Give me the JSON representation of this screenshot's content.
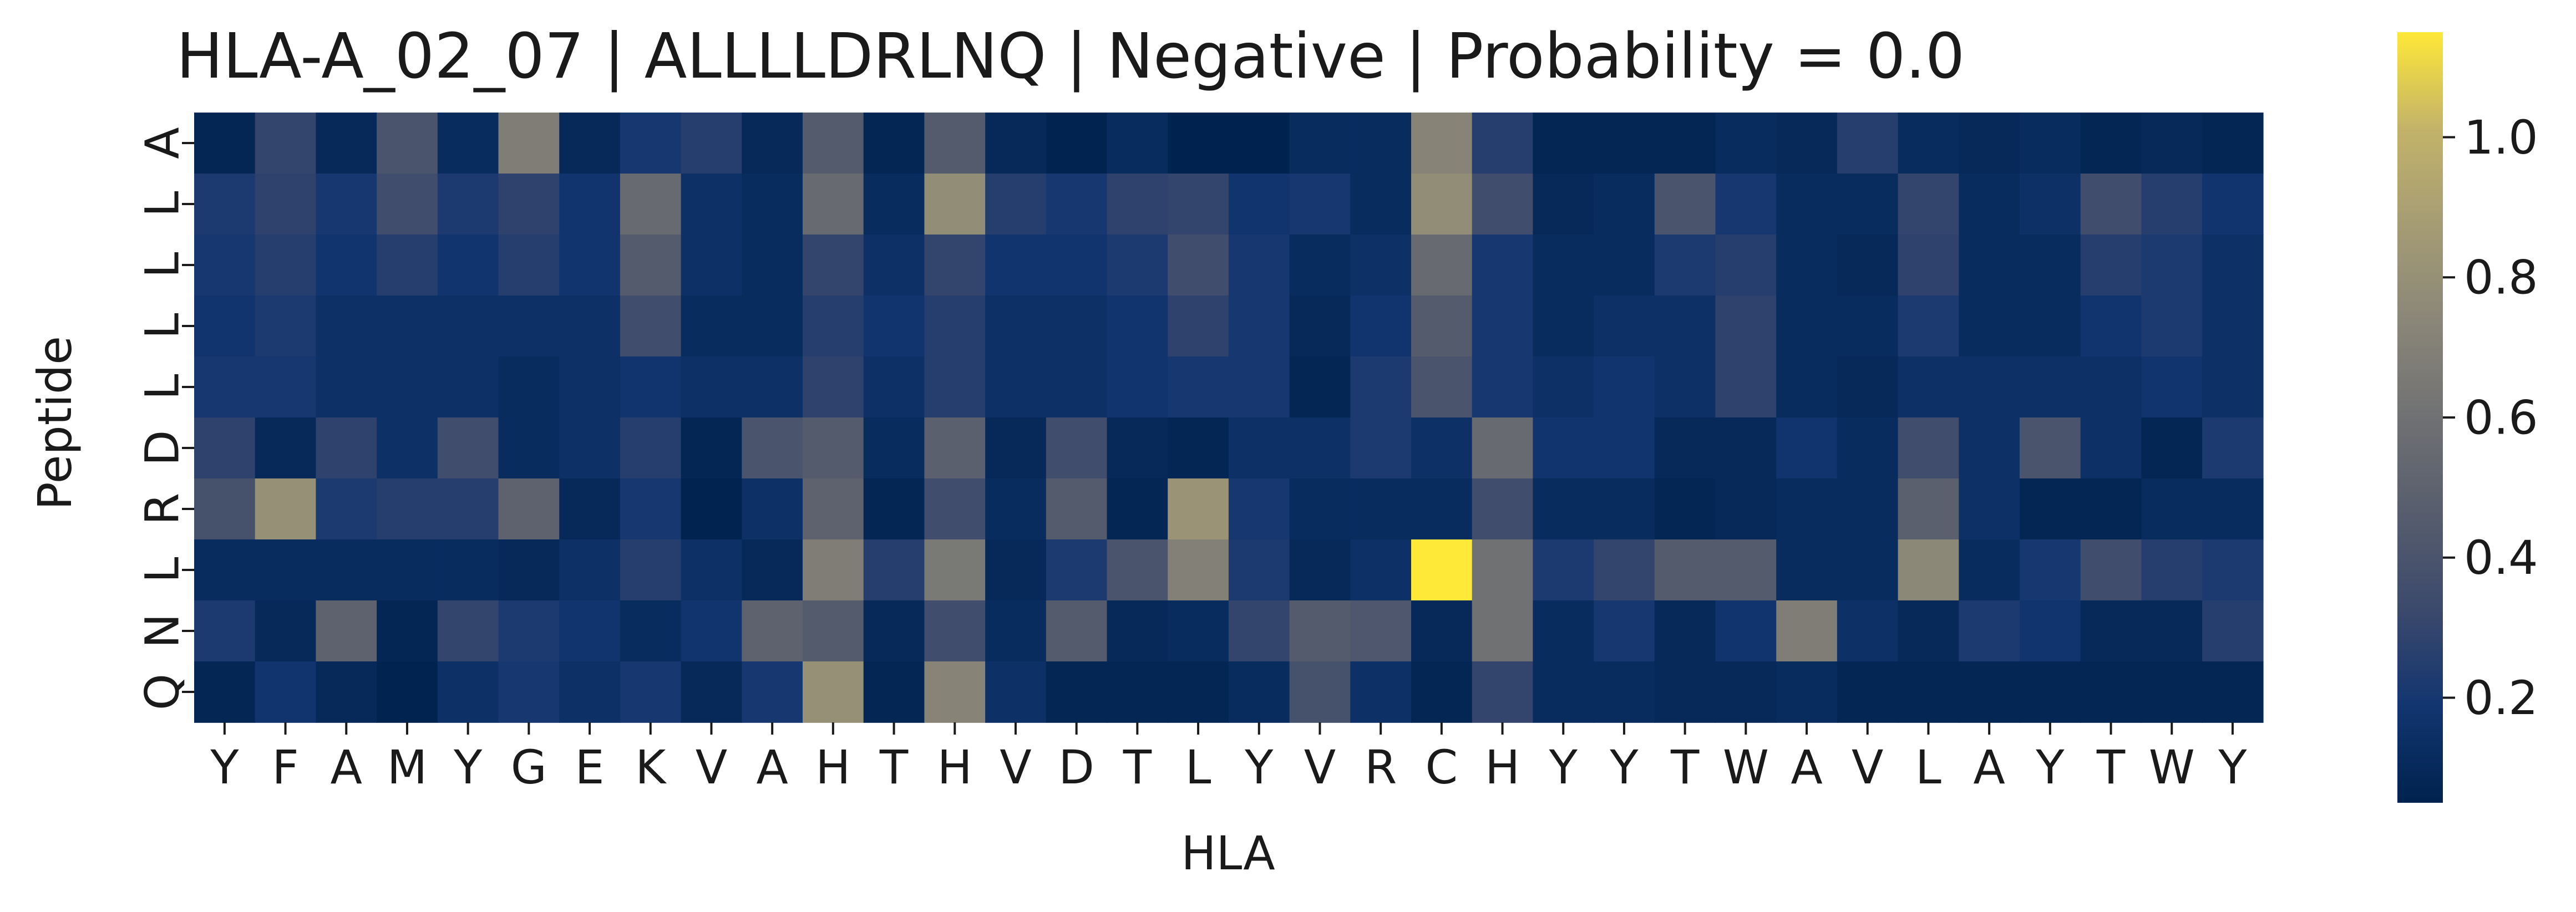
{
  "chart_data": {
    "type": "heatmap",
    "title": "HLA-A_02_07 | ALLLLDRLNQ | Negative | Probability = 0.0",
    "xlabel": "HLA",
    "ylabel": "Peptide",
    "colormap": "cividis",
    "colorbar": {
      "min": 0.05,
      "max": 1.15,
      "ticks": [
        0.2,
        0.4,
        0.6,
        0.8,
        1.0
      ],
      "tick_labels": [
        "0.2",
        "0.4",
        "0.6",
        "0.8",
        "1.0"
      ]
    },
    "x_categories": [
      "Y",
      "F",
      "A",
      "M",
      "Y",
      "G",
      "E",
      "K",
      "V",
      "A",
      "H",
      "T",
      "H",
      "V",
      "D",
      "T",
      "L",
      "Y",
      "V",
      "R",
      "C",
      "H",
      "Y",
      "Y",
      "T",
      "W",
      "A",
      "V",
      "L",
      "A",
      "Y",
      "T",
      "W",
      "Y"
    ],
    "y_categories": [
      "A",
      "L",
      "L",
      "L",
      "L",
      "D",
      "R",
      "L",
      "N",
      "Q"
    ],
    "values": [
      [
        0.08,
        0.3,
        0.1,
        0.4,
        0.12,
        0.68,
        0.1,
        0.2,
        0.25,
        0.1,
        0.45,
        0.08,
        0.45,
        0.1,
        0.06,
        0.12,
        0.05,
        0.05,
        0.12,
        0.12,
        0.72,
        0.25,
        0.08,
        0.08,
        0.08,
        0.12,
        0.1,
        0.25,
        0.12,
        0.1,
        0.12,
        0.08,
        0.1,
        0.08
      ],
      [
        0.22,
        0.28,
        0.2,
        0.35,
        0.22,
        0.28,
        0.18,
        0.55,
        0.15,
        0.12,
        0.55,
        0.12,
        0.78,
        0.25,
        0.2,
        0.28,
        0.3,
        0.18,
        0.2,
        0.12,
        0.78,
        0.35,
        0.1,
        0.12,
        0.4,
        0.2,
        0.12,
        0.12,
        0.3,
        0.12,
        0.15,
        0.35,
        0.25,
        0.18
      ],
      [
        0.2,
        0.25,
        0.18,
        0.25,
        0.18,
        0.25,
        0.18,
        0.45,
        0.15,
        0.12,
        0.3,
        0.15,
        0.3,
        0.18,
        0.18,
        0.22,
        0.35,
        0.2,
        0.12,
        0.15,
        0.55,
        0.2,
        0.12,
        0.12,
        0.22,
        0.25,
        0.12,
        0.1,
        0.28,
        0.12,
        0.12,
        0.25,
        0.22,
        0.15
      ],
      [
        0.18,
        0.22,
        0.15,
        0.15,
        0.15,
        0.15,
        0.15,
        0.35,
        0.12,
        0.12,
        0.25,
        0.18,
        0.25,
        0.15,
        0.15,
        0.18,
        0.28,
        0.2,
        0.1,
        0.18,
        0.45,
        0.2,
        0.12,
        0.15,
        0.15,
        0.28,
        0.12,
        0.12,
        0.22,
        0.12,
        0.12,
        0.18,
        0.22,
        0.15
      ],
      [
        0.2,
        0.2,
        0.15,
        0.15,
        0.15,
        0.12,
        0.15,
        0.18,
        0.15,
        0.15,
        0.28,
        0.15,
        0.25,
        0.15,
        0.15,
        0.18,
        0.2,
        0.2,
        0.08,
        0.22,
        0.4,
        0.2,
        0.15,
        0.18,
        0.15,
        0.28,
        0.12,
        0.1,
        0.15,
        0.15,
        0.15,
        0.15,
        0.18,
        0.15
      ],
      [
        0.28,
        0.1,
        0.28,
        0.15,
        0.35,
        0.12,
        0.15,
        0.25,
        0.08,
        0.4,
        0.45,
        0.12,
        0.48,
        0.1,
        0.35,
        0.1,
        0.08,
        0.15,
        0.15,
        0.22,
        0.15,
        0.55,
        0.18,
        0.18,
        0.1,
        0.1,
        0.18,
        0.12,
        0.35,
        0.15,
        0.4,
        0.15,
        0.08,
        0.22
      ],
      [
        0.38,
        0.8,
        0.22,
        0.25,
        0.25,
        0.5,
        0.1,
        0.2,
        0.06,
        0.15,
        0.5,
        0.08,
        0.35,
        0.12,
        0.45,
        0.08,
        0.82,
        0.2,
        0.12,
        0.12,
        0.12,
        0.35,
        0.12,
        0.12,
        0.08,
        0.1,
        0.12,
        0.12,
        0.48,
        0.15,
        0.08,
        0.08,
        0.12,
        0.12
      ],
      [
        0.12,
        0.12,
        0.12,
        0.12,
        0.12,
        0.1,
        0.15,
        0.25,
        0.15,
        0.1,
        0.68,
        0.25,
        0.65,
        0.1,
        0.22,
        0.4,
        0.7,
        0.22,
        0.1,
        0.15,
        1.15,
        0.6,
        0.22,
        0.3,
        0.45,
        0.45,
        0.12,
        0.12,
        0.75,
        0.12,
        0.2,
        0.35,
        0.25,
        0.22
      ],
      [
        0.22,
        0.1,
        0.5,
        0.08,
        0.3,
        0.22,
        0.18,
        0.12,
        0.18,
        0.5,
        0.45,
        0.1,
        0.35,
        0.12,
        0.45,
        0.1,
        0.12,
        0.3,
        0.45,
        0.42,
        0.1,
        0.6,
        0.12,
        0.2,
        0.1,
        0.18,
        0.68,
        0.15,
        0.1,
        0.22,
        0.18,
        0.1,
        0.1,
        0.25
      ],
      [
        0.08,
        0.18,
        0.1,
        0.06,
        0.15,
        0.2,
        0.15,
        0.2,
        0.1,
        0.2,
        0.8,
        0.08,
        0.72,
        0.15,
        0.08,
        0.08,
        0.08,
        0.12,
        0.38,
        0.15,
        0.08,
        0.3,
        0.12,
        0.12,
        0.1,
        0.1,
        0.12,
        0.08,
        0.08,
        0.08,
        0.08,
        0.08,
        0.08,
        0.08
      ]
    ]
  }
}
